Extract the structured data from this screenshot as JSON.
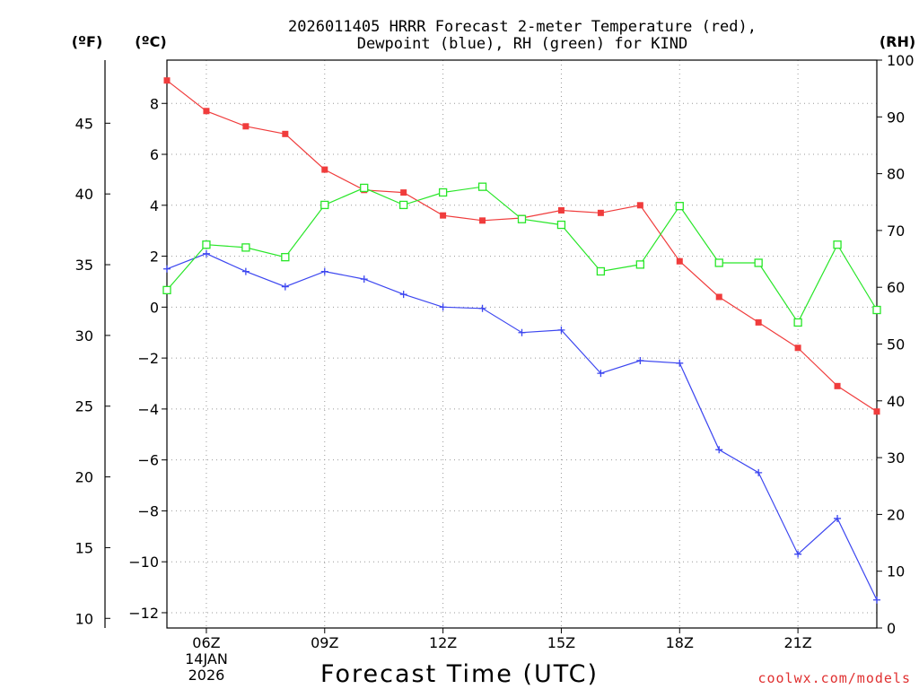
{
  "chart_data": {
    "type": "line",
    "title": [
      "2026011405 HRRR Forecast 2-meter Temperature (red),",
      "Dewpoint (blue), RH (green) for KIND"
    ],
    "xlabel": "Forecast Time (UTC)",
    "left_inner_unit": "(ºC)",
    "left_outer_unit": "(ºF)",
    "right_unit": "(RH)",
    "hours": [
      5,
      6,
      7,
      8,
      9,
      10,
      11,
      12,
      13,
      14,
      15,
      16,
      17,
      18,
      19,
      20,
      21,
      22,
      23
    ],
    "x_ticks": [
      {
        "hour": 6,
        "label": "06Z",
        "sublabels": [
          "14JAN",
          "2026"
        ]
      },
      {
        "hour": 9,
        "label": "09Z",
        "sublabels": []
      },
      {
        "hour": 12,
        "label": "12Z",
        "sublabels": []
      },
      {
        "hour": 15,
        "label": "15Z",
        "sublabels": []
      },
      {
        "hour": 18,
        "label": "18Z",
        "sublabels": []
      },
      {
        "hour": 21,
        "label": "21Z",
        "sublabels": []
      }
    ],
    "xlim": [
      5,
      23
    ],
    "celsius_lim": [
      -12.6,
      9.7
    ],
    "rh_lim": [
      0,
      100
    ],
    "celsius_ticks": [
      "8",
      "6",
      "4",
      "2",
      "0",
      "−2",
      "−4",
      "−6",
      "−8",
      "−10",
      "−12"
    ],
    "fahrenheit_ticks": [
      "45",
      "40",
      "35",
      "30",
      "25",
      "20",
      "15",
      "10"
    ],
    "rh_ticks": [
      "100",
      "90",
      "80",
      "70",
      "60",
      "50",
      "40",
      "30",
      "20",
      "10",
      "0"
    ],
    "grid": true,
    "series": [
      {
        "name": "Temperature",
        "unit": "C",
        "color": "#f03c3c",
        "marker": "filled-square",
        "values": [
          8.9,
          7.7,
          7.1,
          6.8,
          5.4,
          4.6,
          4.5,
          3.6,
          3.4,
          3.5,
          3.8,
          3.7,
          4.0,
          1.8,
          0.4,
          -0.6,
          -1.6,
          -3.1,
          -4.1
        ]
      },
      {
        "name": "Dewpoint",
        "unit": "C",
        "color": "#3c46f0",
        "marker": "plus",
        "values": [
          1.5,
          2.1,
          1.4,
          0.8,
          1.4,
          1.1,
          0.5,
          0.0,
          -0.05,
          -1.0,
          -0.9,
          -2.6,
          -2.1,
          -2.2,
          -5.6,
          -6.5,
          -9.7,
          -8.3,
          -11.5
        ]
      },
      {
        "name": "RH",
        "unit": "%",
        "color": "#28e628",
        "marker": "open-square",
        "values": [
          59.5,
          67.5,
          67.0,
          65.3,
          74.5,
          77.5,
          74.5,
          76.7,
          77.7,
          72.0,
          71.0,
          62.8,
          64.0,
          74.3,
          64.3,
          64.3,
          53.8,
          67.5,
          56.0
        ]
      }
    ]
  },
  "credit": {
    "text": "coolwx.com/models",
    "color": "#e03030"
  }
}
